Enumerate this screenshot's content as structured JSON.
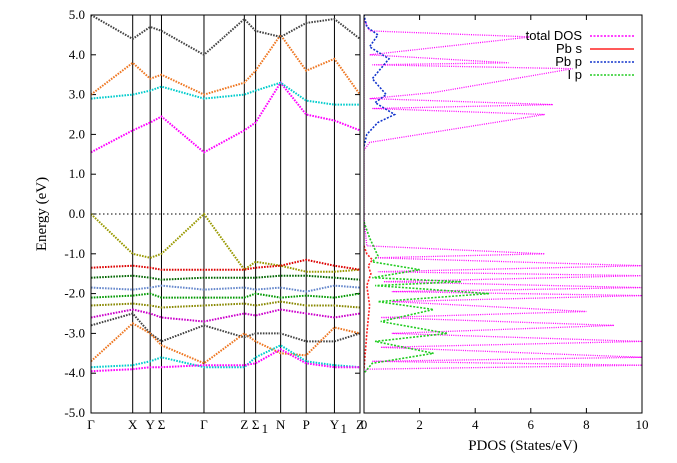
{
  "chart_data": [
    {
      "type": "line",
      "ylabel": "Energy (eV)",
      "ylim": [
        -5.0,
        5.0
      ],
      "y_ticks": [
        "-5.0",
        "-4.0",
        "-3.0",
        "-2.0",
        "-1.0",
        "0.0",
        "1.0",
        "2.0",
        "3.0",
        "4.0",
        "5.0"
      ],
      "kpoints": [
        {
          "label": "Γ",
          "sub": "",
          "x": 0.0
        },
        {
          "label": "X",
          "sub": "",
          "x": 0.155
        },
        {
          "label": "Y",
          "sub": "",
          "x": 0.22
        },
        {
          "label": "Σ",
          "sub": "",
          "x": 0.262
        },
        {
          "label": "Γ",
          "sub": "",
          "x": 0.42
        },
        {
          "label": "Z",
          "sub": "",
          "x": 0.57
        },
        {
          "label": "Σ",
          "sub": "1",
          "x": 0.612
        },
        {
          "label": "N",
          "sub": "",
          "x": 0.705
        },
        {
          "label": "P",
          "sub": "",
          "x": 0.8
        },
        {
          "label": "Y",
          "sub": "1",
          "x": 0.905
        },
        {
          "label": "Z",
          "sub": "",
          "x": 1.0
        }
      ],
      "fermi_level": 0.0,
      "series": [
        {
          "color": "#ff00ff",
          "x": [
            0,
            0.155,
            0.22,
            0.262,
            0.42,
            0.57,
            0.612,
            0.705,
            0.8,
            0.905,
            1.0
          ],
          "values": [
            1.55,
            2.1,
            2.3,
            2.45,
            1.55,
            2.1,
            2.3,
            3.3,
            2.5,
            2.35,
            2.1
          ]
        },
        {
          "color": "#00cccc",
          "x": [
            0,
            0.155,
            0.22,
            0.262,
            0.42,
            0.57,
            0.612,
            0.705,
            0.8,
            0.905,
            1.0
          ],
          "values": [
            2.9,
            3.0,
            3.1,
            3.2,
            2.9,
            3.0,
            3.1,
            3.3,
            2.85,
            2.75,
            2.75
          ]
        },
        {
          "color": "#ee7722",
          "x": [
            0,
            0.155,
            0.22,
            0.262,
            0.42,
            0.57,
            0.612,
            0.705,
            0.8,
            0.905,
            1.0
          ],
          "values": [
            3.0,
            3.8,
            3.4,
            3.5,
            3.0,
            3.3,
            3.6,
            4.5,
            3.6,
            3.9,
            3.0
          ]
        },
        {
          "color": "#444444",
          "x": [
            0,
            0.155,
            0.22,
            0.262,
            0.42,
            0.57,
            0.612,
            0.705,
            0.8,
            0.905,
            1.0
          ],
          "values": [
            5.0,
            4.4,
            4.7,
            4.6,
            4.0,
            4.9,
            4.6,
            4.45,
            4.8,
            4.9,
            4.4
          ]
        },
        {
          "color": "#999900",
          "x": [
            0,
            0.155,
            0.22,
            0.262,
            0.42,
            0.57,
            0.612,
            0.705,
            0.8,
            0.905,
            1.0
          ],
          "values": [
            0.0,
            -1.0,
            -1.1,
            -1.0,
            0.0,
            -1.4,
            -1.2,
            -1.3,
            -1.45,
            -1.45,
            -1.4
          ]
        },
        {
          "color": "#dd0000",
          "x": [
            0,
            0.155,
            0.22,
            0.262,
            0.42,
            0.57,
            0.612,
            0.705,
            0.8,
            0.905,
            1.0
          ],
          "values": [
            -1.35,
            -1.3,
            -1.35,
            -1.4,
            -1.4,
            -1.4,
            -1.35,
            -1.3,
            -1.15,
            -1.3,
            -1.4
          ]
        },
        {
          "color": "#006600",
          "x": [
            0,
            0.155,
            0.22,
            0.262,
            0.42,
            0.57,
            0.612,
            0.705,
            0.8,
            0.905,
            1.0
          ],
          "values": [
            -1.6,
            -1.55,
            -1.6,
            -1.65,
            -1.6,
            -1.6,
            -1.6,
            -1.55,
            -1.55,
            -1.6,
            -1.65
          ]
        },
        {
          "color": "#6688cc",
          "x": [
            0,
            0.155,
            0.22,
            0.262,
            0.42,
            0.57,
            0.612,
            0.705,
            0.8,
            0.905,
            1.0
          ],
          "values": [
            -1.85,
            -1.9,
            -1.85,
            -1.8,
            -1.9,
            -1.85,
            -1.9,
            -1.85,
            -1.95,
            -1.8,
            -1.85
          ]
        },
        {
          "color": "#009900",
          "x": [
            0,
            0.155,
            0.22,
            0.262,
            0.42,
            0.57,
            0.612,
            0.705,
            0.8,
            0.905,
            1.0
          ],
          "values": [
            -2.1,
            -2.05,
            -2.0,
            -2.1,
            -2.1,
            -2.1,
            -2.0,
            -2.1,
            -2.05,
            -2.1,
            -2.0
          ]
        },
        {
          "color": "#888800",
          "x": [
            0,
            0.155,
            0.22,
            0.262,
            0.42,
            0.57,
            0.612,
            0.705,
            0.8,
            0.905,
            1.0
          ],
          "values": [
            -2.3,
            -2.25,
            -2.3,
            -2.35,
            -2.3,
            -2.25,
            -2.3,
            -2.2,
            -2.3,
            -2.3,
            -2.35
          ]
        },
        {
          "color": "#cc00cc",
          "x": [
            0,
            0.155,
            0.22,
            0.262,
            0.42,
            0.57,
            0.612,
            0.705,
            0.8,
            0.905,
            1.0
          ],
          "values": [
            -2.6,
            -2.4,
            -2.5,
            -2.6,
            -2.7,
            -2.5,
            -2.55,
            -2.4,
            -2.5,
            -2.6,
            -2.5
          ]
        },
        {
          "color": "#444444",
          "x": [
            0,
            0.155,
            0.22,
            0.262,
            0.42,
            0.57,
            0.612,
            0.705,
            0.8,
            0.905,
            1.0
          ],
          "values": [
            -2.8,
            -2.5,
            -3.0,
            -3.2,
            -2.8,
            -3.1,
            -3.0,
            -3.0,
            -3.2,
            -3.2,
            -3.0
          ]
        },
        {
          "color": "#ee7722",
          "x": [
            0,
            0.155,
            0.22,
            0.262,
            0.42,
            0.57,
            0.612,
            0.705,
            0.8,
            0.905,
            1.0
          ],
          "values": [
            -3.7,
            -2.75,
            -3.0,
            -3.3,
            -3.75,
            -3.0,
            -3.2,
            -3.5,
            -3.55,
            -2.85,
            -3.0
          ]
        },
        {
          "color": "#00cccc",
          "x": [
            0,
            0.155,
            0.22,
            0.262,
            0.42,
            0.57,
            0.612,
            0.705,
            0.8,
            0.905,
            1.0
          ],
          "values": [
            -3.85,
            -3.8,
            -3.7,
            -3.6,
            -3.85,
            -3.85,
            -3.6,
            -3.3,
            -3.7,
            -3.8,
            -3.85
          ]
        },
        {
          "color": "#ff00ff",
          "x": [
            0,
            0.155,
            0.22,
            0.262,
            0.42,
            0.57,
            0.612,
            0.705,
            0.8,
            0.905,
            1.0
          ],
          "values": [
            -3.95,
            -3.9,
            -3.85,
            -3.85,
            -3.8,
            -3.8,
            -3.75,
            -3.4,
            -3.75,
            -3.85,
            -3.85
          ]
        }
      ]
    },
    {
      "type": "line",
      "xlabel": "PDOS (States/eV)",
      "xlim": [
        0,
        10
      ],
      "ylim": [
        -5.0,
        5.0
      ],
      "x_ticks": [
        "0",
        "2",
        "4",
        "6",
        "8",
        "10"
      ],
      "legend_position": "top-right",
      "series": [
        {
          "name": "total DOS",
          "color": "#ff00ff",
          "x": [
            0.0,
            0.2,
            6.5,
            0.3,
            6.8,
            0.2,
            2.5,
            7.5,
            0.3,
            5.2,
            0.2,
            6.0,
            0.2,
            0.0,
            0.0,
            0.1,
            6.5,
            0.4,
            10.0,
            0.5,
            10.0,
            0.7,
            10.0,
            1.0,
            10.0,
            1.0,
            8.0,
            0.6,
            9.0,
            1.0,
            10.0,
            0.6,
            10.0,
            0.3,
            10.0,
            0.1,
            0.0
          ],
          "values": [
            1.6,
            1.8,
            2.5,
            2.65,
            2.75,
            2.9,
            3.05,
            3.65,
            3.75,
            3.8,
            4.0,
            4.45,
            4.6,
            4.9,
            -0.1,
            -0.8,
            -1.0,
            -1.1,
            -1.3,
            -1.45,
            -1.55,
            -1.7,
            -1.85,
            -1.95,
            -2.05,
            -2.2,
            -2.45,
            -2.6,
            -2.8,
            -3.0,
            -3.2,
            -3.35,
            -3.6,
            -3.7,
            -3.8,
            -3.9,
            -4.0
          ]
        },
        {
          "name": "Pb s",
          "color": "#ff2222",
          "x": [
            0.0,
            0.1,
            0.3,
            0.15,
            0.25,
            0.1,
            0.2,
            0.1,
            0.0
          ],
          "values": [
            -0.8,
            -1.0,
            -1.15,
            -1.3,
            -1.5,
            -1.8,
            -2.3,
            -3.0,
            -3.9
          ]
        },
        {
          "name": "Pb p",
          "color": "#1133cc",
          "x": [
            0.0,
            0.1,
            0.5,
            1.1,
            0.4,
            0.8,
            0.3,
            0.9,
            0.2,
            0.5,
            0.1,
            0.0
          ],
          "values": [
            1.7,
            2.0,
            2.3,
            2.5,
            2.8,
            3.0,
            3.4,
            3.9,
            4.2,
            4.5,
            4.7,
            5.0
          ]
        },
        {
          "name": "I p",
          "color": "#22cc22",
          "x": [
            0.0,
            0.2,
            0.5,
            0.3,
            2.0,
            0.3,
            3.5,
            0.4,
            4.5,
            0.5,
            2.5,
            0.6,
            3.0,
            0.4,
            2.5,
            0.3,
            0.0
          ],
          "values": [
            -0.2,
            -0.6,
            -1.05,
            -1.2,
            -1.4,
            -1.6,
            -1.7,
            -1.8,
            -2.0,
            -2.2,
            -2.4,
            -2.7,
            -3.0,
            -3.2,
            -3.5,
            -3.75,
            -4.0
          ]
        }
      ]
    }
  ]
}
